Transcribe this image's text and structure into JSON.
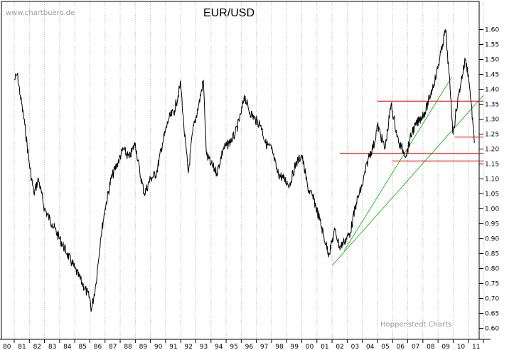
{
  "watermark": "www.chartbuero.de",
  "credit": "Hoppenstedt Charts",
  "chart_data": {
    "type": "line",
    "title": "EUR/USD",
    "y_axis_position": "right",
    "ylim": [
      0.6,
      1.6
    ],
    "y_ticks": [
      0.6,
      0.65,
      0.7,
      0.75,
      0.8,
      0.85,
      0.9,
      0.95,
      1.0,
      1.05,
      1.1,
      1.15,
      1.2,
      1.25,
      1.3,
      1.35,
      1.4,
      1.45,
      1.5,
      1.55,
      1.6
    ],
    "x_ticks": [
      "80",
      "81",
      "82",
      "83",
      "84",
      "85",
      "86",
      "87",
      "88",
      "89",
      "90",
      "91",
      "92",
      "93",
      "94",
      "95",
      "96",
      "97",
      "98",
      "99",
      "00",
      "01",
      "02",
      "03",
      "04",
      "05",
      "06",
      "07",
      "08",
      "09",
      "10",
      "11"
    ],
    "grid": "vertical dotted",
    "series": [
      {
        "color": "#000000",
        "x": [
          1980.0,
          1980.2,
          1980.4,
          1980.7,
          1981.0,
          1981.3,
          1981.6,
          1982.0,
          1982.5,
          1983.0,
          1983.5,
          1984.0,
          1984.5,
          1985.0,
          1985.1,
          1985.4,
          1985.7,
          1986.0,
          1986.4,
          1986.8,
          1987.2,
          1987.6,
          1988.0,
          1988.3,
          1988.6,
          1989.0,
          1989.4,
          1989.8,
          1990.2,
          1990.6,
          1991.0,
          1991.2,
          1991.5,
          1991.8,
          1992.2,
          1992.5,
          1992.7,
          1993.0,
          1993.4,
          1993.8,
          1994.2,
          1994.6,
          1995.0,
          1995.2,
          1995.5,
          1995.9,
          1996.3,
          1996.6,
          1997.0,
          1997.4,
          1997.8,
          1998.2,
          1998.6,
          1999.0,
          1999.4,
          1999.8,
          2000.2,
          2000.6,
          2000.8,
          2001.2,
          2001.5,
          2001.8,
          2002.2,
          2002.6,
          2003.0,
          2003.4,
          2003.8,
          2004.0,
          2004.5,
          2004.9,
          2005.4,
          2005.9,
          2006.3,
          2006.8,
          2007.2,
          2007.6,
          2007.9,
          2008.3,
          2008.5,
          2008.8,
          2009.0,
          2009.2,
          2009.5,
          2009.8,
          2010.0,
          2010.2,
          2010.4
        ],
        "values": [
          1.43,
          1.45,
          1.38,
          1.28,
          1.15,
          1.05,
          1.1,
          1.0,
          0.95,
          0.9,
          0.85,
          0.8,
          0.75,
          0.7,
          0.66,
          0.75,
          0.9,
          1.0,
          1.1,
          1.15,
          1.2,
          1.17,
          1.22,
          1.12,
          1.05,
          1.1,
          1.12,
          1.22,
          1.3,
          1.33,
          1.42,
          1.28,
          1.12,
          1.26,
          1.35,
          1.43,
          1.18,
          1.15,
          1.12,
          1.2,
          1.22,
          1.25,
          1.32,
          1.38,
          1.33,
          1.3,
          1.28,
          1.22,
          1.2,
          1.12,
          1.1,
          1.08,
          1.15,
          1.18,
          1.07,
          1.03,
          0.96,
          0.88,
          0.85,
          0.93,
          0.87,
          0.89,
          0.92,
          1.02,
          1.08,
          1.17,
          1.22,
          1.28,
          1.2,
          1.35,
          1.22,
          1.18,
          1.26,
          1.3,
          1.33,
          1.4,
          1.45,
          1.55,
          1.6,
          1.4,
          1.25,
          1.33,
          1.42,
          1.5,
          1.45,
          1.35,
          1.22
        ]
      }
    ],
    "support_lines": [
      {
        "color": "#ff0000",
        "y": 1.36,
        "from": 2004.0,
        "to": 2011.0
      },
      {
        "color": "#ff0000",
        "y": 1.185,
        "from": 2001.5,
        "to": 2011.0
      },
      {
        "color": "#ff0000",
        "y": 1.16,
        "from": 2005.0,
        "to": 2011.0
      },
      {
        "color": "#ff0000",
        "y": 1.24,
        "from": 2009.1,
        "to": 2011.0
      }
    ],
    "trend_lines": [
      {
        "color": "#00b000",
        "from": [
          2001.0,
          0.81
        ],
        "to": [
          2011.0,
          1.38
        ]
      },
      {
        "color": "#00b000",
        "from": [
          2001.8,
          0.86
        ],
        "to": [
          2008.9,
          1.44
        ]
      }
    ]
  }
}
